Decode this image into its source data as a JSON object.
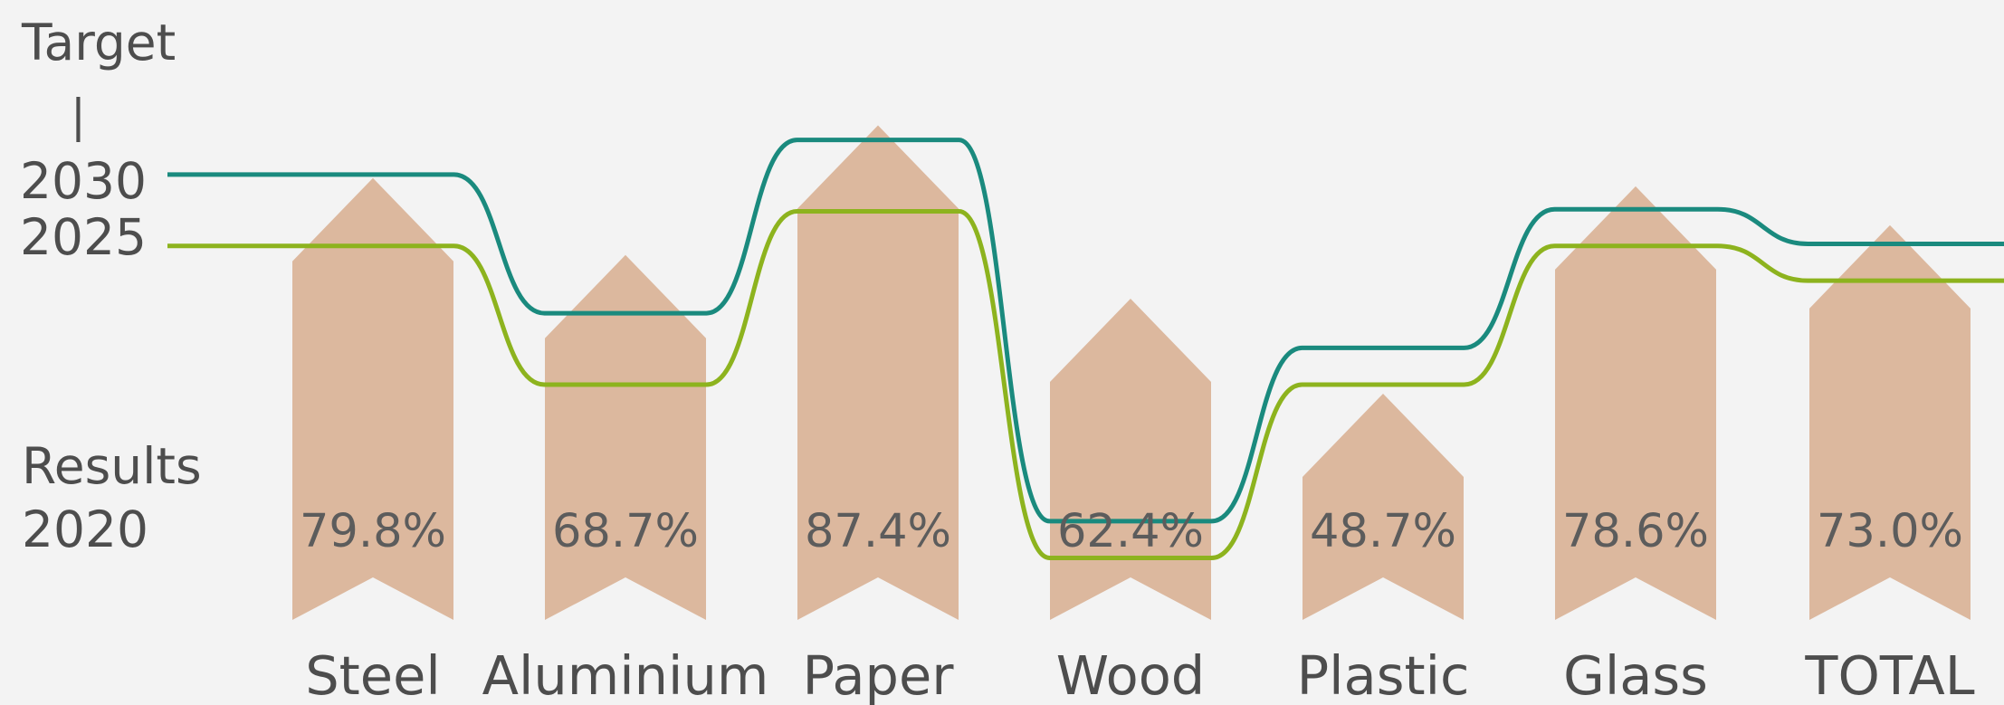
{
  "labels": {
    "target_heading": "Target",
    "target_separator": "|",
    "target_2030": "2030",
    "target_2025": "2025",
    "results_heading": "Results",
    "results_year": "2020"
  },
  "colors": {
    "background": "#f3f3f3",
    "result_bar": "#dcb89e",
    "target_2030_line": "#1a8a7e",
    "target_2025_line": "#8db31e",
    "text": "#4d4d4d"
  },
  "chart_data": {
    "type": "bar",
    "categories": [
      "Steel",
      "Aluminium",
      "Paper",
      "Wood",
      "Plastic",
      "Glass",
      "TOTAL"
    ],
    "series": [
      {
        "name": "2020",
        "values": [
          79.8,
          68.7,
          87.4,
          62.4,
          48.7,
          78.6,
          73.0
        ],
        "value_labels": [
          "79.8%",
          "68.7%",
          "87.4%",
          "62.4%",
          "48.7%",
          "78.6%",
          "73.0%"
        ]
      },
      {
        "name": "2030",
        "values": [
          80,
          60,
          85,
          30,
          55,
          75,
          70
        ]
      },
      {
        "name": "2025",
        "values": [
          70,
          50,
          75,
          25,
          50,
          70,
          65
        ]
      }
    ]
  }
}
